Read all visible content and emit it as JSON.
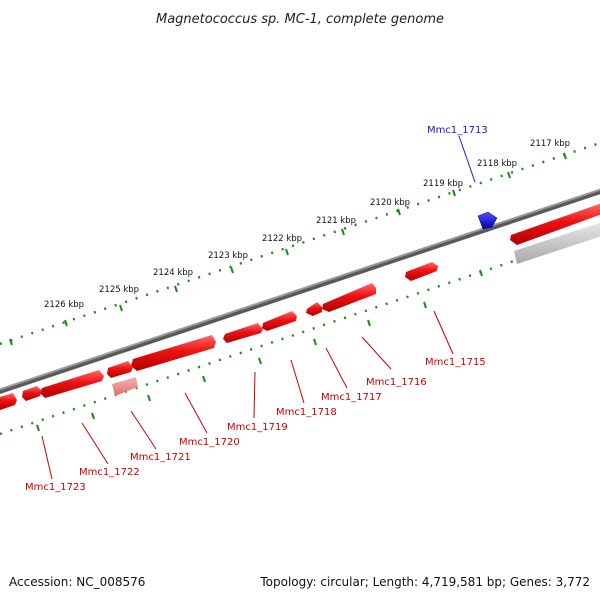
{
  "title": "Magnetococcus sp. MC-1, complete genome",
  "footer": {
    "accession": "Accession: NC_008576",
    "topology": "Topology: circular; Length: 4,719,581 bp; Genes: 3,772"
  },
  "scale_labels": [
    "2117 kbp",
    "2118 kbp",
    "2119 kbp",
    "2120 kbp",
    "2121 kbp",
    "2122 kbp",
    "2123 kbp",
    "2124 kbp",
    "2125 kbp",
    "2126 kbp"
  ],
  "gene_labels": [
    {
      "text": "Mmc1_1713",
      "strand": "forward"
    },
    {
      "text": "Mmc1_1715",
      "strand": "reverse"
    },
    {
      "text": "Mmc1_1716",
      "strand": "reverse"
    },
    {
      "text": "Mmc1_1717",
      "strand": "reverse"
    },
    {
      "text": "Mmc1_1718",
      "strand": "reverse"
    },
    {
      "text": "Mmc1_1719",
      "strand": "reverse"
    },
    {
      "text": "Mmc1_1720",
      "strand": "reverse"
    },
    {
      "text": "Mmc1_1721",
      "strand": "reverse"
    },
    {
      "text": "Mmc1_1722",
      "strand": "reverse"
    },
    {
      "text": "Mmc1_1723",
      "strand": "reverse"
    }
  ],
  "colors": {
    "forward_gene": "#1010ee",
    "reverse_gene": "#ee1111",
    "reverse_gene_faded": "#f08080",
    "rna_gene": "#bbbbbb",
    "backbone": "#808080",
    "scale_ticks": "#1a8a1a",
    "red_label": "#cc0000",
    "blue_label": "#1a1acc"
  }
}
